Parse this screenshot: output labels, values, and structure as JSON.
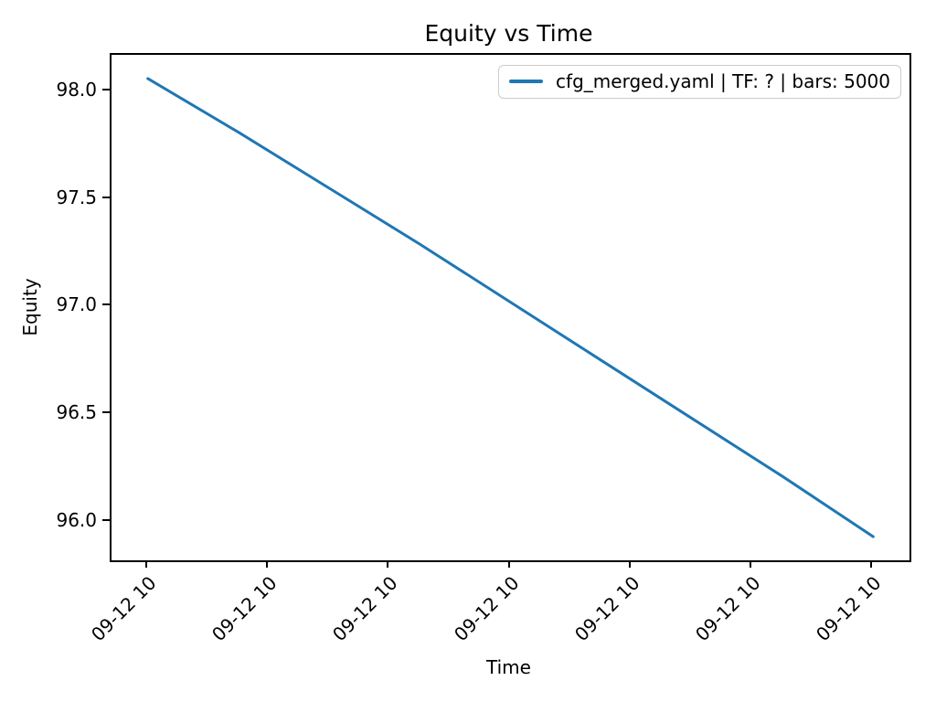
{
  "figure": {
    "background": "#ffffff",
    "text_color": "#000000",
    "spine_color": "#000000",
    "legend_border_color": "#cccccc"
  },
  "chart_data": {
    "type": "line",
    "title": "Equity vs Time",
    "xlabel": "Time",
    "ylabel": "Equity",
    "grid": false,
    "legend_position": "upper right",
    "x_tick_labels": [
      "09-12 10",
      "09-12 10",
      "09-12 10",
      "09-12 10",
      "09-12 10",
      "09-12 10",
      "09-12 10"
    ],
    "y_ticks": [
      96.0,
      96.5,
      97.0,
      97.5,
      98.0
    ],
    "y_tick_labels": [
      "96.0",
      "96.5",
      "97.0",
      "97.5",
      "98.0"
    ],
    "xlim": [
      -0.05,
      1.05
    ],
    "ylim": [
      95.82,
      98.17
    ],
    "series": [
      {
        "name": "cfg_merged.yaml | TF: ? | bars: 5000",
        "color": "#1f77b4",
        "line_width": 3,
        "x": [
          0.0,
          0.125,
          0.25,
          0.375,
          0.5,
          0.625,
          0.75,
          0.875,
          1.0
        ],
        "values": [
          98.06,
          97.81,
          97.55,
          97.29,
          97.02,
          96.75,
          96.48,
          96.21,
          95.93
        ]
      }
    ]
  }
}
